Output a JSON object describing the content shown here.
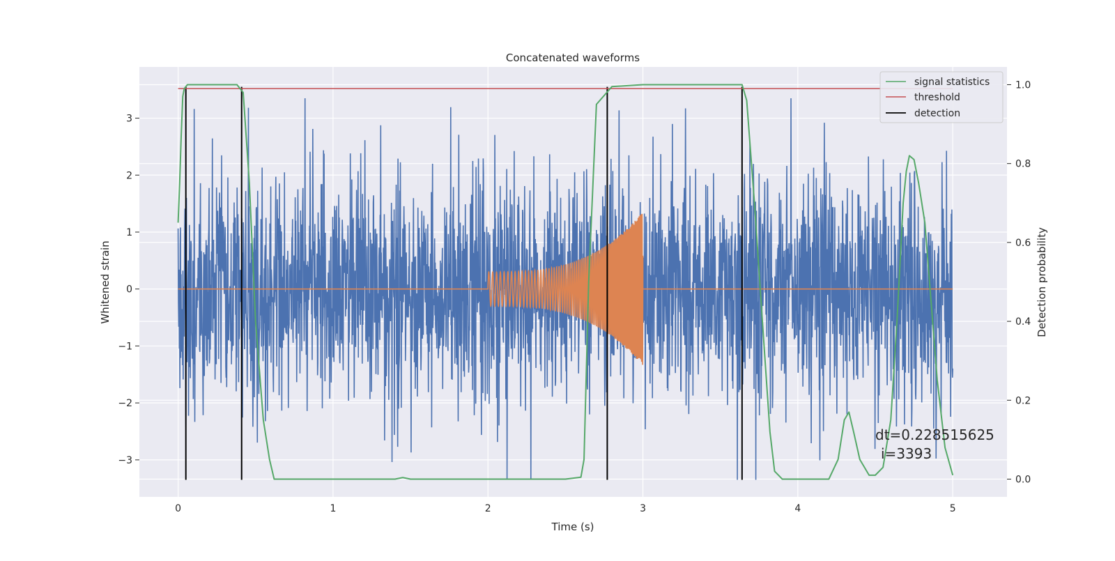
{
  "chart_data": {
    "type": "line",
    "title": "Concatenated waveforms",
    "xlabel": "Time (s)",
    "ylabel_left": "Whitened strain",
    "ylabel_right": "Detection probability",
    "xlim": [
      -0.25,
      5.35
    ],
    "ylim_left": [
      -3.65,
      3.9
    ],
    "ylim_right": [
      -0.045,
      1.045
    ],
    "x_ticks": [
      "0",
      "1",
      "2",
      "3",
      "4",
      "5"
    ],
    "x_tick_values": [
      0,
      1,
      2,
      3,
      4,
      5
    ],
    "y_left_ticks": [
      "−3",
      "−2",
      "−1",
      "0",
      "1",
      "2",
      "3"
    ],
    "y_left_tick_values": [
      -3,
      -2,
      -1,
      0,
      1,
      2,
      3
    ],
    "y_right_ticks": [
      "0.0",
      "0.2",
      "0.4",
      "0.6",
      "0.8",
      "1.0"
    ],
    "y_right_tick_values": [
      0,
      0.2,
      0.4,
      0.6,
      0.8,
      1.0
    ],
    "grid": true,
    "legend_position": "top-right",
    "series": [
      {
        "name": "signal statistics",
        "axis": "right",
        "color": "#55a868",
        "x": [
          0,
          0.01,
          0.02,
          0.03,
          0.04,
          0.06,
          0.1,
          0.2,
          0.3,
          0.38,
          0.42,
          0.46,
          0.5,
          0.55,
          0.59,
          0.62,
          1.0,
          1.4,
          1.45,
          1.5,
          2.0,
          2.5,
          2.6,
          2.62,
          2.65,
          2.7,
          2.8,
          3.0,
          3.5,
          3.64,
          3.67,
          3.72,
          3.78,
          3.82,
          3.85,
          3.9,
          4.0,
          4.1,
          4.2,
          4.26,
          4.3,
          4.33,
          4.36,
          4.4,
          4.46,
          4.5,
          4.55,
          4.6,
          4.64,
          4.68,
          4.7,
          4.72,
          4.75,
          4.78,
          4.82,
          4.86,
          4.9,
          4.95,
          5.0
        ],
        "y": [
          0.65,
          0.75,
          0.87,
          0.97,
          0.99,
          1.0,
          1.0,
          1.0,
          1.0,
          1.0,
          0.98,
          0.75,
          0.4,
          0.15,
          0.05,
          0.0,
          0.0,
          0.0,
          0.004,
          0.0,
          0.0,
          0.0,
          0.005,
          0.05,
          0.5,
          0.95,
          0.995,
          1.0,
          1.0,
          1.0,
          0.96,
          0.7,
          0.35,
          0.12,
          0.02,
          0.0,
          0.0,
          0.0,
          0.0,
          0.05,
          0.15,
          0.17,
          0.12,
          0.05,
          0.01,
          0.01,
          0.03,
          0.15,
          0.4,
          0.7,
          0.78,
          0.82,
          0.81,
          0.75,
          0.65,
          0.45,
          0.25,
          0.08,
          0.01
        ]
      },
      {
        "name": "threshold",
        "axis": "right",
        "color": "#c44e52",
        "x": [
          0,
          5
        ],
        "y": [
          0.99,
          0.99
        ]
      },
      {
        "name": "detection",
        "axis": "left",
        "color": "#000000",
        "vlines_x": [
          0.05,
          0.41,
          2.77,
          3.64
        ],
        "vline_ymin": -3.35,
        "vline_ymax": 3.55
      },
      {
        "axis": "left",
        "color": "#4c72b0",
        "kind": "noisy strain",
        "x_range": [
          0,
          5
        ],
        "sigma": 1.0
      },
      {
        "axis": "left",
        "color": "#dd8452",
        "kind": "injected chirp",
        "x_range": [
          2,
          3
        ],
        "amplitude_range": [
          0.3,
          1.35
        ],
        "x_zero": [
          0,
          5
        ]
      }
    ],
    "annotation": {
      "line1": "dt=0.228515625",
      "line2": "i=3393"
    }
  }
}
